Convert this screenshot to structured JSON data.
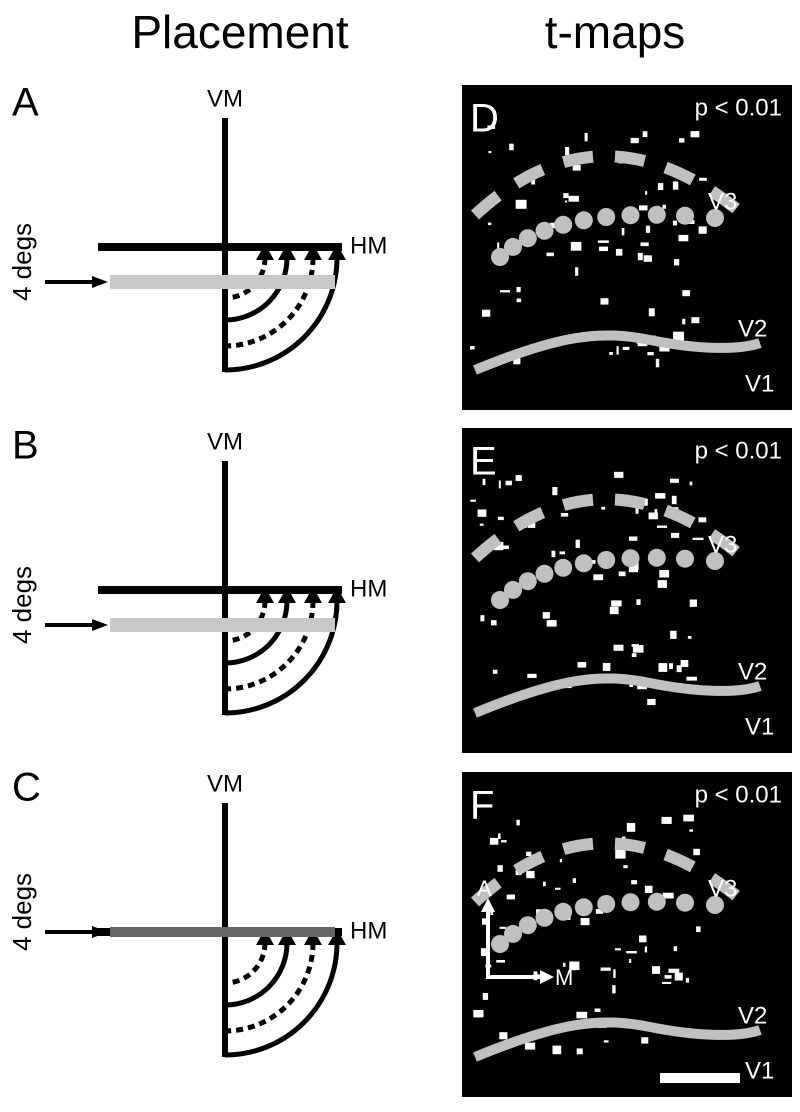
{
  "headers": {
    "placement": "Placement",
    "tmaps": "t-maps"
  },
  "placement_panels": [
    {
      "label": "A",
      "vm": "VM",
      "hm": "HM",
      "eccentricity": "4 degs"
    },
    {
      "label": "B",
      "vm": "VM",
      "hm": "HM",
      "eccentricity": "4 degs"
    },
    {
      "label": "C",
      "vm": "VM",
      "hm": "HM",
      "eccentricity": "4 degs"
    }
  ],
  "tmap_panels": [
    {
      "label": "D",
      "threshold": "p < 0.01",
      "areas": [
        "V3",
        "V2",
        "V1"
      ]
    },
    {
      "label": "E",
      "threshold": "p < 0.01",
      "areas": [
        "V3",
        "V2",
        "V1"
      ]
    },
    {
      "label": "F",
      "threshold": "p < 0.01",
      "areas": [
        "V3",
        "V2",
        "V1"
      ],
      "axes": [
        "A",
        "M"
      ]
    }
  ]
}
